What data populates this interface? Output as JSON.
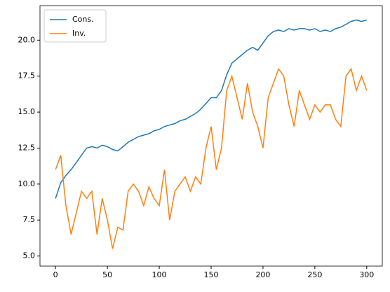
{
  "chart_data": {
    "type": "line",
    "x": [
      0,
      5,
      10,
      15,
      20,
      25,
      30,
      35,
      40,
      45,
      50,
      55,
      60,
      65,
      70,
      75,
      80,
      85,
      90,
      95,
      100,
      105,
      110,
      115,
      120,
      125,
      130,
      135,
      140,
      145,
      150,
      155,
      160,
      165,
      170,
      175,
      180,
      185,
      190,
      195,
      200,
      205,
      210,
      215,
      220,
      225,
      230,
      235,
      240,
      245,
      250,
      255,
      260,
      265,
      270,
      275,
      280,
      285,
      290,
      295,
      300
    ],
    "series": [
      {
        "name": "Cons.",
        "color": "#1f77b4",
        "values": [
          9.0,
          10.1,
          10.6,
          11.0,
          11.5,
          12.0,
          12.5,
          12.6,
          12.5,
          12.7,
          12.6,
          12.4,
          12.3,
          12.6,
          12.9,
          13.1,
          13.3,
          13.4,
          13.5,
          13.7,
          13.8,
          14.0,
          14.1,
          14.2,
          14.4,
          14.5,
          14.7,
          14.9,
          15.2,
          15.6,
          16.0,
          16.0,
          16.5,
          17.6,
          18.4,
          18.7,
          19.0,
          19.3,
          19.5,
          19.3,
          19.8,
          20.3,
          20.6,
          20.7,
          20.6,
          20.8,
          20.7,
          20.8,
          20.8,
          20.7,
          20.8,
          20.6,
          20.7,
          20.6,
          20.8,
          20.9,
          21.1,
          21.3,
          21.4,
          21.3,
          21.4
        ]
      },
      {
        "name": "Inv.",
        "color": "#ff7f0e",
        "values": [
          11.0,
          12.0,
          8.5,
          6.5,
          8.0,
          9.5,
          9.0,
          9.5,
          6.5,
          9.0,
          7.5,
          5.5,
          7.0,
          6.8,
          9.5,
          10.0,
          9.5,
          8.5,
          9.8,
          9.0,
          8.5,
          11.0,
          7.5,
          9.5,
          10.0,
          10.5,
          9.5,
          10.5,
          10.0,
          12.5,
          14.0,
          11.0,
          12.5,
          16.5,
          17.5,
          16.0,
          14.5,
          17.0,
          15.0,
          14.0,
          12.5,
          16.0,
          17.0,
          18.0,
          17.5,
          15.5,
          14.0,
          16.5,
          15.5,
          14.5,
          15.5,
          15.0,
          15.5,
          15.5,
          14.5,
          14.0,
          17.5,
          18.0,
          16.5,
          17.5,
          16.5
        ]
      }
    ],
    "xlim": [
      -15,
      315
    ],
    "xticks": [
      0,
      50,
      100,
      150,
      200,
      250,
      300
    ],
    "ylim": [
      4.3,
      22.4
    ],
    "yticks": [
      {
        "value": 5,
        "label": "5.0"
      },
      7.5,
      {
        "value": 10,
        "label": "10.0"
      },
      12.5,
      {
        "value": 15,
        "label": "15.0"
      },
      17.5,
      {
        "value": 20,
        "label": "20.0"
      }
    ],
    "legend": "upper left"
  }
}
